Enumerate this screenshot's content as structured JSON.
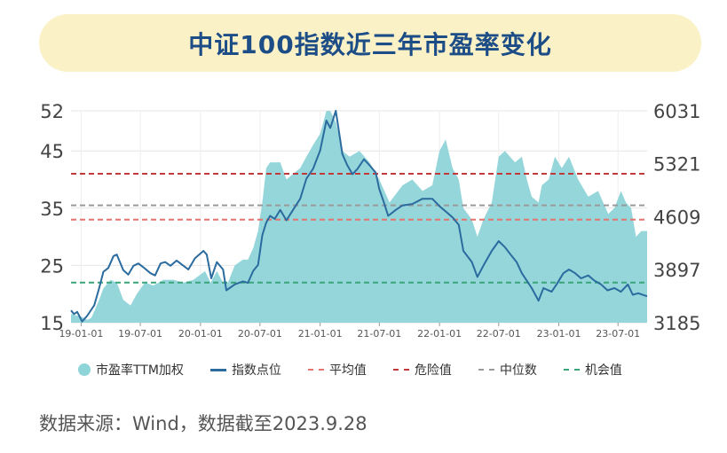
{
  "title": "中证100指数近三年市盈率变化",
  "source": "数据来源：Wind，数据截至2023.9.28",
  "colors": {
    "area": "#8fd4d9",
    "line": "#2b6b9e",
    "avg": "#e3746e",
    "danger": "#c0393b",
    "median": "#9a9a9a",
    "opportunity": "#3aa57a"
  },
  "chart_data": {
    "type": "line",
    "x_ticks": [
      "19-01-01",
      "19-07-01",
      "20-01-01",
      "20-07-01",
      "21-01-01",
      "21-07-01",
      "22-01-01",
      "22-07-01",
      "23-01-01",
      "23-07-01"
    ],
    "y_left_ticks": [
      "52",
      "45",
      "35",
      "25",
      "15"
    ],
    "y_right_ticks": [
      "6031",
      "5321",
      "4609",
      "3897",
      "3185"
    ],
    "y_left_range": [
      15,
      52
    ],
    "y_right_range": [
      3185,
      6031
    ],
    "date_range": [
      "2018-12-01",
      "2023-09-28"
    ],
    "reference_lines": {
      "avg": 33,
      "danger": 41,
      "median": 35.5,
      "opportunity": 22
    },
    "series": [
      {
        "name": "市盈率TTM加权",
        "type": "area",
        "axis": "left",
        "points": [
          [
            "2018-12-01",
            16.5
          ],
          [
            "2019-01-04",
            16
          ],
          [
            "2019-01-20",
            15.5
          ],
          [
            "2019-02-01",
            15.8
          ],
          [
            "2019-02-25",
            19
          ],
          [
            "2019-03-10",
            21
          ],
          [
            "2019-04-01",
            22.5
          ],
          [
            "2019-04-20",
            22
          ],
          [
            "2019-05-10",
            19
          ],
          [
            "2019-06-01",
            18
          ],
          [
            "2019-06-20",
            20
          ],
          [
            "2019-07-15",
            22
          ],
          [
            "2019-08-10",
            21.5
          ],
          [
            "2019-09-10",
            22.5
          ],
          [
            "2019-10-10",
            22.5
          ],
          [
            "2019-11-10",
            22
          ],
          [
            "2019-12-10",
            22.5
          ],
          [
            "2020-01-15",
            24
          ],
          [
            "2020-02-01",
            22
          ],
          [
            "2020-02-20",
            24
          ],
          [
            "2020-03-10",
            22
          ],
          [
            "2020-03-25",
            22
          ],
          [
            "2020-04-15",
            25
          ],
          [
            "2020-05-10",
            26
          ],
          [
            "2020-05-25",
            26
          ],
          [
            "2020-06-10",
            28
          ],
          [
            "2020-06-25",
            31
          ],
          [
            "2020-07-08",
            36
          ],
          [
            "2020-07-20",
            42
          ],
          [
            "2020-08-01",
            43
          ],
          [
            "2020-09-01",
            43
          ],
          [
            "2020-09-20",
            40
          ],
          [
            "2020-10-10",
            41
          ],
          [
            "2020-11-01",
            42
          ],
          [
            "2020-11-20",
            44
          ],
          [
            "2020-12-10",
            46
          ],
          [
            "2021-01-01",
            48
          ],
          [
            "2021-01-20",
            52
          ],
          [
            "2021-02-01",
            52
          ],
          [
            "2021-02-18",
            50
          ],
          [
            "2021-03-10",
            45
          ],
          [
            "2021-04-01",
            44
          ],
          [
            "2021-05-01",
            45
          ],
          [
            "2021-06-01",
            43
          ],
          [
            "2021-07-01",
            40
          ],
          [
            "2021-08-01",
            36
          ],
          [
            "2021-09-10",
            39
          ],
          [
            "2021-10-10",
            40
          ],
          [
            "2021-11-10",
            38
          ],
          [
            "2021-12-10",
            39
          ],
          [
            "2022-01-01",
            45
          ],
          [
            "2022-01-20",
            47
          ],
          [
            "2022-02-10",
            42
          ],
          [
            "2022-03-01",
            40
          ],
          [
            "2022-03-15",
            35
          ],
          [
            "2022-04-10",
            33
          ],
          [
            "2022-04-27",
            30
          ],
          [
            "2022-05-15",
            33
          ],
          [
            "2022-06-10",
            36
          ],
          [
            "2022-07-01",
            44
          ],
          [
            "2022-07-20",
            45
          ],
          [
            "2022-08-20",
            43
          ],
          [
            "2022-09-10",
            44
          ],
          [
            "2022-09-25",
            40
          ],
          [
            "2022-10-10",
            37
          ],
          [
            "2022-10-31",
            36
          ],
          [
            "2022-11-10",
            39
          ],
          [
            "2022-12-01",
            40
          ],
          [
            "2022-12-20",
            44
          ],
          [
            "2023-01-10",
            42
          ],
          [
            "2023-02-01",
            44
          ],
          [
            "2023-03-01",
            40
          ],
          [
            "2023-04-01",
            37
          ],
          [
            "2023-05-01",
            38
          ],
          [
            "2023-06-01",
            34
          ],
          [
            "2023-06-20",
            35
          ],
          [
            "2023-07-10",
            38
          ],
          [
            "2023-07-25",
            36
          ],
          [
            "2023-08-10",
            35
          ],
          [
            "2023-08-25",
            30
          ],
          [
            "2023-09-10",
            31
          ],
          [
            "2023-09-28",
            31
          ]
        ]
      },
      {
        "name": "指数点位",
        "type": "line",
        "axis": "right",
        "points": [
          [
            "2018-12-01",
            3350
          ],
          [
            "2018-12-10",
            3300
          ],
          [
            "2018-12-20",
            3330
          ],
          [
            "2019-01-04",
            3200
          ],
          [
            "2019-01-20",
            3280
          ],
          [
            "2019-02-10",
            3420
          ],
          [
            "2019-02-25",
            3650
          ],
          [
            "2019-03-10",
            3870
          ],
          [
            "2019-03-25",
            3920
          ],
          [
            "2019-04-10",
            4080
          ],
          [
            "2019-04-20",
            4100
          ],
          [
            "2019-05-10",
            3890
          ],
          [
            "2019-05-25",
            3830
          ],
          [
            "2019-06-10",
            3950
          ],
          [
            "2019-06-25",
            3980
          ],
          [
            "2019-07-10",
            3930
          ],
          [
            "2019-08-01",
            3850
          ],
          [
            "2019-08-15",
            3820
          ],
          [
            "2019-09-01",
            3980
          ],
          [
            "2019-09-15",
            4000
          ],
          [
            "2019-10-01",
            3950
          ],
          [
            "2019-10-20",
            4020
          ],
          [
            "2019-11-10",
            3950
          ],
          [
            "2019-11-25",
            3900
          ],
          [
            "2019-12-15",
            4050
          ],
          [
            "2020-01-10",
            4150
          ],
          [
            "2020-01-20",
            4100
          ],
          [
            "2020-02-03",
            3780
          ],
          [
            "2020-02-20",
            4000
          ],
          [
            "2020-03-10",
            3900
          ],
          [
            "2020-03-20",
            3620
          ],
          [
            "2020-04-15",
            3700
          ],
          [
            "2020-05-10",
            3740
          ],
          [
            "2020-05-25",
            3720
          ],
          [
            "2020-06-10",
            3880
          ],
          [
            "2020-06-25",
            3960
          ],
          [
            "2020-07-08",
            4360
          ],
          [
            "2020-07-20",
            4530
          ],
          [
            "2020-08-01",
            4620
          ],
          [
            "2020-08-15",
            4580
          ],
          [
            "2020-09-01",
            4700
          ],
          [
            "2020-09-20",
            4560
          ],
          [
            "2020-10-10",
            4700
          ],
          [
            "2020-11-01",
            4850
          ],
          [
            "2020-11-20",
            5120
          ],
          [
            "2020-12-10",
            5250
          ],
          [
            "2021-01-01",
            5500
          ],
          [
            "2021-01-20",
            5900
          ],
          [
            "2021-02-01",
            5800
          ],
          [
            "2021-02-18",
            6031
          ],
          [
            "2021-03-10",
            5450
          ],
          [
            "2021-03-25",
            5300
          ],
          [
            "2021-04-10",
            5180
          ],
          [
            "2021-04-25",
            5250
          ],
          [
            "2021-05-15",
            5380
          ],
          [
            "2021-06-01",
            5300
          ],
          [
            "2021-06-20",
            5200
          ],
          [
            "2021-07-01",
            4980
          ],
          [
            "2021-07-15",
            4800
          ],
          [
            "2021-07-28",
            4620
          ],
          [
            "2021-08-20",
            4700
          ],
          [
            "2021-09-10",
            4760
          ],
          [
            "2021-10-10",
            4780
          ],
          [
            "2021-11-10",
            4850
          ],
          [
            "2021-12-10",
            4850
          ],
          [
            "2022-01-01",
            4750
          ],
          [
            "2022-01-20",
            4680
          ],
          [
            "2022-02-10",
            4600
          ],
          [
            "2022-03-01",
            4500
          ],
          [
            "2022-03-15",
            4150
          ],
          [
            "2022-04-10",
            4000
          ],
          [
            "2022-04-27",
            3800
          ],
          [
            "2022-05-15",
            3950
          ],
          [
            "2022-06-10",
            4150
          ],
          [
            "2022-07-01",
            4280
          ],
          [
            "2022-07-20",
            4200
          ],
          [
            "2022-08-10",
            4080
          ],
          [
            "2022-08-25",
            4000
          ],
          [
            "2022-09-10",
            3850
          ],
          [
            "2022-10-10",
            3650
          ],
          [
            "2022-10-31",
            3480
          ],
          [
            "2022-11-15",
            3650
          ],
          [
            "2022-12-10",
            3600
          ],
          [
            "2022-12-25",
            3700
          ],
          [
            "2023-01-15",
            3850
          ],
          [
            "2023-02-01",
            3900
          ],
          [
            "2023-02-20",
            3850
          ],
          [
            "2023-03-10",
            3780
          ],
          [
            "2023-04-01",
            3820
          ],
          [
            "2023-04-20",
            3750
          ],
          [
            "2023-05-10",
            3700
          ],
          [
            "2023-05-30",
            3620
          ],
          [
            "2023-06-20",
            3650
          ],
          [
            "2023-07-10",
            3600
          ],
          [
            "2023-07-31",
            3700
          ],
          [
            "2023-08-15",
            3560
          ],
          [
            "2023-09-01",
            3580
          ],
          [
            "2023-09-28",
            3540
          ]
        ]
      }
    ]
  },
  "legend": {
    "area": "市盈率TTM加权",
    "line": "指数点位",
    "avg": "平均值",
    "danger": "危险值",
    "median": "中位数",
    "opportunity": "机会值"
  }
}
